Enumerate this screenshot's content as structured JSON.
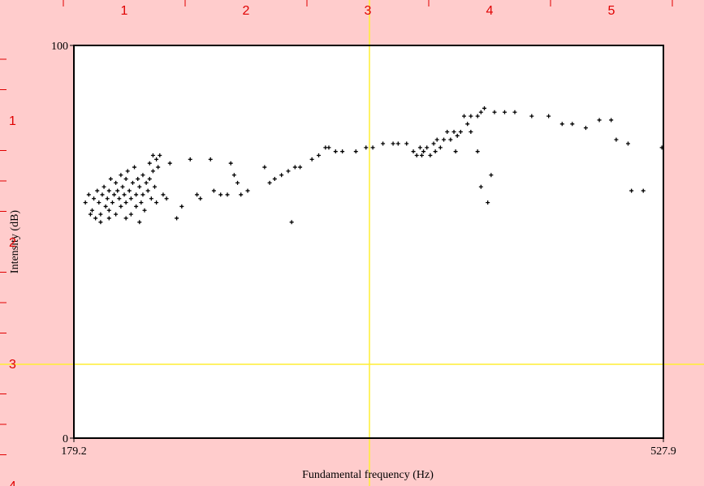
{
  "rulers": {
    "top": [
      1,
      2,
      3,
      4,
      5
    ],
    "left": [
      1,
      2,
      3,
      4
    ]
  },
  "chart_data": {
    "type": "scatter",
    "xlabel": "Fundamental frequency (Hz)",
    "ylabel": "Intensity (dB)",
    "xlim": [
      179.2,
      527.9
    ],
    "ylim": [
      0,
      100
    ],
    "xticks": [
      179.2,
      527.9
    ],
    "yticks": [
      0,
      100
    ],
    "color": "#000000",
    "x": [
      186,
      188,
      190,
      191,
      192,
      193,
      194,
      195,
      196,
      197,
      198,
      199,
      200,
      200,
      201,
      202,
      203,
      204,
      204,
      205,
      206,
      207,
      207,
      208,
      209,
      210,
      210,
      211,
      212,
      213,
      213,
      214,
      215,
      216,
      216,
      217,
      218,
      219,
      220,
      220,
      221,
      222,
      223,
      224,
      224,
      225,
      226,
      226,
      227,
      228,
      228,
      229,
      230,
      195,
      200,
      210,
      189,
      218,
      232,
      234,
      236,
      240,
      243,
      248,
      252,
      254,
      260,
      262,
      266,
      270,
      272,
      274,
      276,
      278,
      282,
      292,
      295,
      298,
      302,
      306,
      308,
      310,
      313,
      320,
      324,
      328,
      330,
      334,
      338,
      346,
      352,
      356,
      362,
      368,
      371,
      376,
      380,
      382,
      384,
      385,
      386,
      388,
      390,
      392,
      393,
      394,
      396,
      398,
      400,
      402,
      404,
      405,
      406,
      408,
      410,
      412,
      414,
      418,
      420,
      422,
      428,
      434,
      440,
      450,
      460,
      468,
      474,
      482,
      490,
      497,
      414,
      418,
      420,
      424,
      426,
      500,
      507,
      509,
      516,
      527
    ],
    "values": [
      60,
      62,
      58,
      61,
      56,
      63,
      60,
      57,
      62,
      64,
      59,
      61,
      63,
      58,
      66,
      60,
      62,
      65,
      57,
      63,
      61,
      67,
      59,
      64,
      62,
      66,
      60,
      68,
      63,
      61,
      57,
      65,
      69,
      62,
      59,
      66,
      64,
      60,
      67,
      62,
      58,
      65,
      63,
      70,
      66,
      61,
      72,
      68,
      64,
      71,
      60,
      69,
      72,
      55,
      56,
      56,
      57,
      55,
      62,
      61,
      70,
      56,
      59,
      71,
      62,
      61,
      71,
      63,
      62,
      62,
      70,
      67,
      65,
      62,
      63,
      69,
      65,
      66,
      67,
      68,
      55,
      69,
      69,
      71,
      72,
      74,
      74,
      73,
      73,
      73,
      74,
      74,
      75,
      75,
      75,
      75,
      73,
      72,
      74,
      72,
      73,
      74,
      72,
      75,
      73,
      76,
      74,
      76,
      78,
      76,
      78,
      73,
      77,
      78,
      82,
      80,
      82,
      82,
      83,
      84,
      83,
      83,
      83,
      82,
      82,
      80,
      80,
      79,
      81,
      81,
      78,
      73,
      64,
      60,
      67,
      76,
      75,
      63,
      63,
      74
    ]
  }
}
